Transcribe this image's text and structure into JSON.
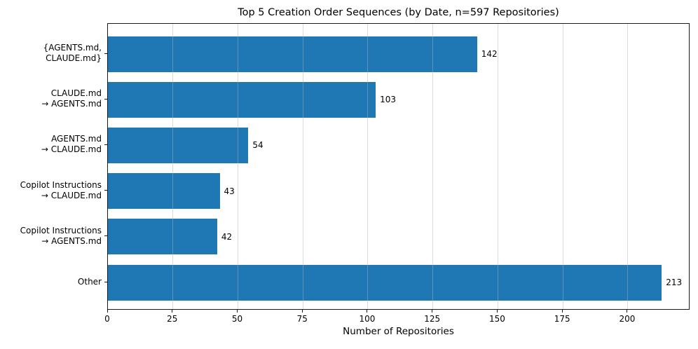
{
  "chart_data": {
    "type": "bar",
    "orientation": "horizontal",
    "title": "Top 5 Creation Order Sequences (by Date, n=597 Repositories)",
    "xlabel": "Number of Repositories",
    "ylabel": "",
    "categories": [
      "{AGENTS.md,\nCLAUDE.md}",
      "CLAUDE.md\n→ AGENTS.md",
      "AGENTS.md\n→ CLAUDE.md",
      "Copilot Instructions\n→ CLAUDE.md",
      "Copilot Instructions\n→ AGENTS.md",
      "Other"
    ],
    "values": [
      142,
      103,
      54,
      43,
      42,
      213
    ],
    "value_labels": [
      "142",
      "103",
      "54",
      "43",
      "42",
      "213"
    ],
    "xlim": [
      0,
      224
    ],
    "xticks": [
      0,
      25,
      50,
      75,
      100,
      125,
      150,
      175,
      200
    ],
    "grid": true,
    "legend": false,
    "bar_color": "#1f77b4",
    "grid_color": "#b0b0b0",
    "spine_color": "#1a1a1a",
    "text_color": "#000000",
    "background_color": "#ffffff"
  }
}
